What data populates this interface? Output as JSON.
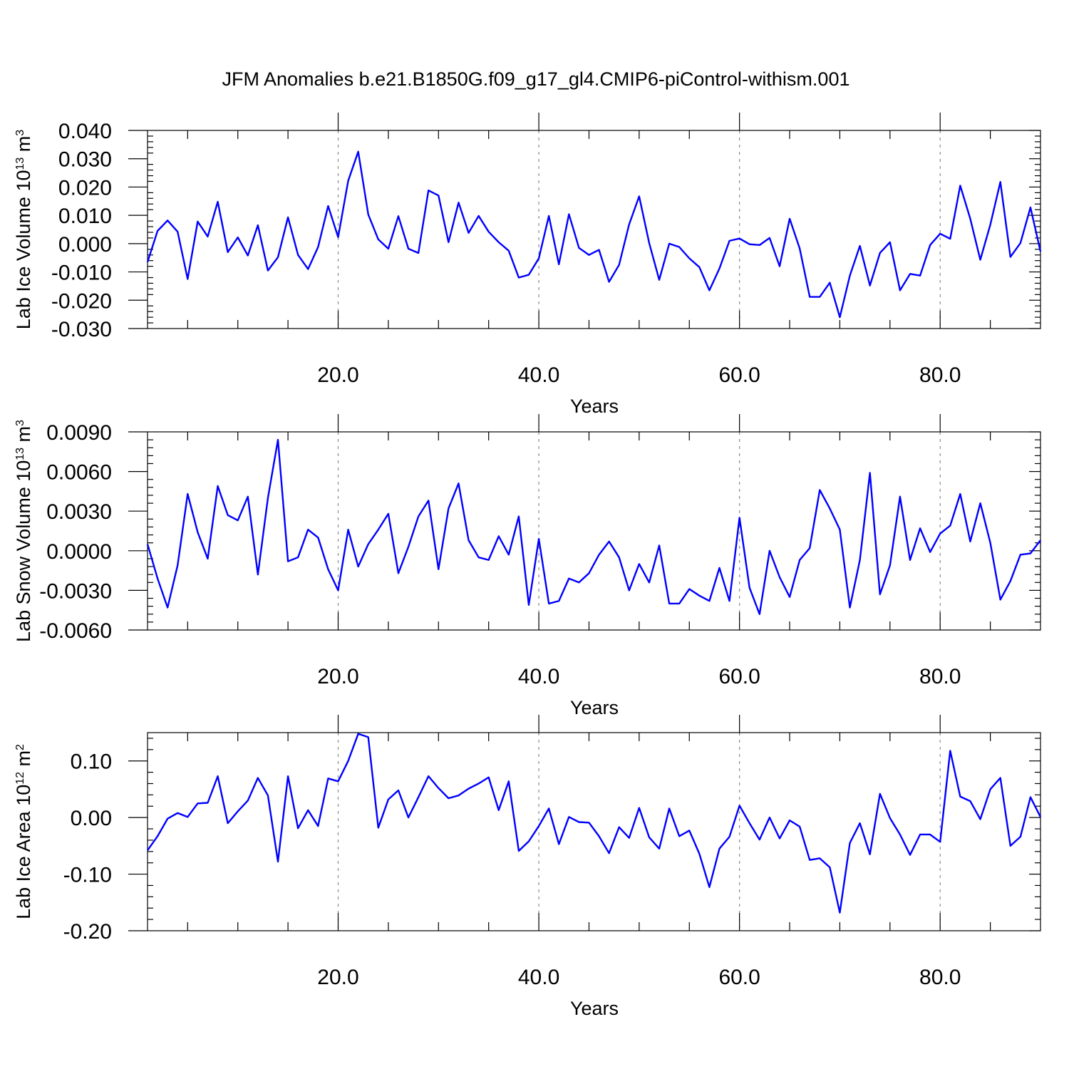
{
  "title": "JFM Anomalies b.e21.B1850G.f09_g17_gl4.CMIP6-piControl-withism.001",
  "colors": {
    "series": "#0000ff",
    "axis": "#000000",
    "grid": "#8a8a8a"
  },
  "chart_data": [
    {
      "type": "line",
      "ylabel_text": "Lab Ice Volume 10",
      "ylabel_exp": "13",
      "ylabel_unit": " m",
      "ylabel_unit_exp": "3",
      "xlabel": "Years",
      "xlim": [
        1,
        90
      ],
      "ylim": [
        -0.03,
        0.04
      ],
      "xticks": [
        20,
        40,
        60,
        80
      ],
      "xtick_labels": [
        "20.0",
        "40.0",
        "60.0",
        "80.0"
      ],
      "yticks": [
        -0.03,
        -0.02,
        -0.01,
        0.0,
        0.01,
        0.02,
        0.03,
        0.04
      ],
      "ytick_labels": [
        "-0.030",
        "-0.020",
        "-0.010",
        "0.000",
        "0.010",
        "0.020",
        "0.030",
        "0.040"
      ],
      "x_minor_step": 5,
      "y_minor_step": 0.002,
      "grid": "vertical-dashed-at-major-x",
      "series": [
        {
          "values": [
            -0.0065,
            0.0045,
            0.0082,
            0.0042,
            -0.0125,
            0.0078,
            0.0025,
            0.0148,
            -0.003,
            0.0022,
            -0.0042,
            0.0065,
            -0.0095,
            -0.0048,
            0.0093,
            -0.004,
            -0.009,
            -0.0012,
            0.0133,
            0.0023,
            0.0222,
            0.0325,
            0.0103,
            0.0015,
            -0.0018,
            0.0097,
            -0.0018,
            -0.0033,
            0.0188,
            0.017,
            0.0005,
            0.0145,
            0.0038,
            0.0098,
            0.0042,
            0.0005,
            -0.0025,
            -0.012,
            -0.011,
            -0.0052,
            0.0098,
            -0.0073,
            0.0104,
            -0.0015,
            -0.004,
            -0.0022,
            -0.0135,
            -0.0075,
            0.0068,
            0.0167,
            0.0002,
            -0.0128,
            0.0,
            -0.0012,
            -0.0052,
            -0.0083,
            -0.0165,
            -0.0088,
            0.001,
            0.0018,
            -0.0002,
            -0.0005,
            0.002,
            -0.008,
            0.0088,
            -0.0017,
            -0.0188,
            -0.0188,
            -0.0138,
            -0.026,
            -0.0113,
            -0.0008,
            -0.0148,
            -0.0033,
            0.0005,
            -0.0165,
            -0.0107,
            -0.0113,
            -0.0005,
            0.0035,
            0.0017,
            0.0205,
            0.0088,
            -0.0057,
            0.0067,
            0.0218,
            -0.0047,
            0.0002,
            0.0128,
            -0.0028
          ]
        }
      ]
    },
    {
      "type": "line",
      "ylabel_text": "Lab Snow Volume 10",
      "ylabel_exp": "13",
      "ylabel_unit": " m",
      "ylabel_unit_exp": "3",
      "xlabel": "Years",
      "xlim": [
        1,
        90
      ],
      "ylim": [
        -0.006,
        0.009
      ],
      "xticks": [
        20,
        40,
        60,
        80
      ],
      "xtick_labels": [
        "20.0",
        "40.0",
        "60.0",
        "80.0"
      ],
      "yticks": [
        -0.006,
        -0.003,
        0.0,
        0.003,
        0.006,
        0.009
      ],
      "ytick_labels": [
        "-0.0060",
        "-0.0030",
        "0.0000",
        "0.0030",
        "0.0060",
        "0.0090"
      ],
      "x_minor_step": 5,
      "y_minor_step": 0.0006,
      "grid": "vertical-dashed-at-major-x",
      "series": [
        {
          "values": [
            0.0005,
            -0.0021,
            -0.0043,
            -0.0011,
            0.0043,
            0.0014,
            -0.0006,
            0.0049,
            0.0027,
            0.0023,
            0.0041,
            -0.0018,
            0.004,
            0.0084,
            -0.0008,
            -0.0005,
            0.0016,
            0.001,
            -0.0014,
            -0.003,
            0.0016,
            -0.0012,
            0.0005,
            0.0016,
            0.0028,
            -0.0017,
            0.0003,
            0.0026,
            0.0038,
            -0.0014,
            0.0032,
            0.0051,
            0.0008,
            -0.0005,
            -0.0007,
            0.0011,
            -0.0003,
            0.0026,
            -0.0041,
            0.0009,
            -0.004,
            -0.0038,
            -0.0021,
            -0.0024,
            -0.0017,
            -0.0003,
            0.0007,
            -0.0005,
            -0.003,
            -0.001,
            -0.0024,
            0.0004,
            -0.004,
            -0.004,
            -0.0029,
            -0.0034,
            -0.0038,
            -0.0013,
            -0.0038,
            0.0025,
            -0.0028,
            -0.0048,
            0.0,
            -0.002,
            -0.0035,
            -0.0007,
            0.0002,
            0.0046,
            0.0032,
            0.0016,
            -0.0043,
            -0.0007,
            0.0059,
            -0.0033,
            -0.0011,
            0.0041,
            -0.0007,
            0.0017,
            -0.0001,
            0.0013,
            0.0019,
            0.0043,
            0.0007,
            0.0036,
            0.0006,
            -0.0037,
            -0.0023,
            -0.0003,
            -0.0002,
            0.0008
          ]
        }
      ]
    },
    {
      "type": "line",
      "ylabel_text": "Lab Ice Area 10",
      "ylabel_exp": "12",
      "ylabel_unit": " m",
      "ylabel_unit_exp": "2",
      "xlabel": "Years",
      "xlim": [
        1,
        90
      ],
      "ylim": [
        -0.2,
        0.15
      ],
      "xticks": [
        20,
        40,
        60,
        80
      ],
      "xtick_labels": [
        "20.0",
        "40.0",
        "60.0",
        "80.0"
      ],
      "yticks": [
        -0.2,
        -0.1,
        0.0,
        0.1
      ],
      "ytick_labels": [
        "-0.20",
        "-0.10",
        "0.00",
        "0.10"
      ],
      "x_minor_step": 5,
      "y_minor_step": 0.02,
      "grid": "vertical-dashed-at-major-x",
      "series": [
        {
          "values": [
            -0.058,
            -0.033,
            -0.002,
            0.008,
            0.001,
            0.025,
            0.026,
            0.073,
            -0.01,
            0.011,
            0.03,
            0.07,
            0.039,
            -0.078,
            0.073,
            -0.019,
            0.013,
            -0.015,
            0.069,
            0.064,
            0.1,
            0.148,
            0.142,
            -0.018,
            0.032,
            0.048,
            0.0,
            0.036,
            0.073,
            0.052,
            0.034,
            0.039,
            0.051,
            0.06,
            0.071,
            0.013,
            0.064,
            -0.059,
            -0.042,
            -0.015,
            0.016,
            -0.047,
            0.001,
            -0.008,
            -0.009,
            -0.033,
            -0.063,
            -0.017,
            -0.036,
            0.017,
            -0.035,
            -0.055,
            0.016,
            -0.033,
            -0.023,
            -0.064,
            -0.123,
            -0.055,
            -0.034,
            0.021,
            -0.01,
            -0.039,
            0.0,
            -0.037,
            -0.005,
            -0.016,
            -0.075,
            -0.072,
            -0.088,
            -0.168,
            -0.045,
            -0.01,
            -0.065,
            0.042,
            -0.001,
            -0.03,
            -0.066,
            -0.03,
            -0.03,
            -0.043,
            0.118,
            0.037,
            0.029,
            -0.003,
            0.05,
            0.07,
            -0.05,
            -0.034,
            0.036,
            0.001
          ]
        }
      ]
    }
  ]
}
